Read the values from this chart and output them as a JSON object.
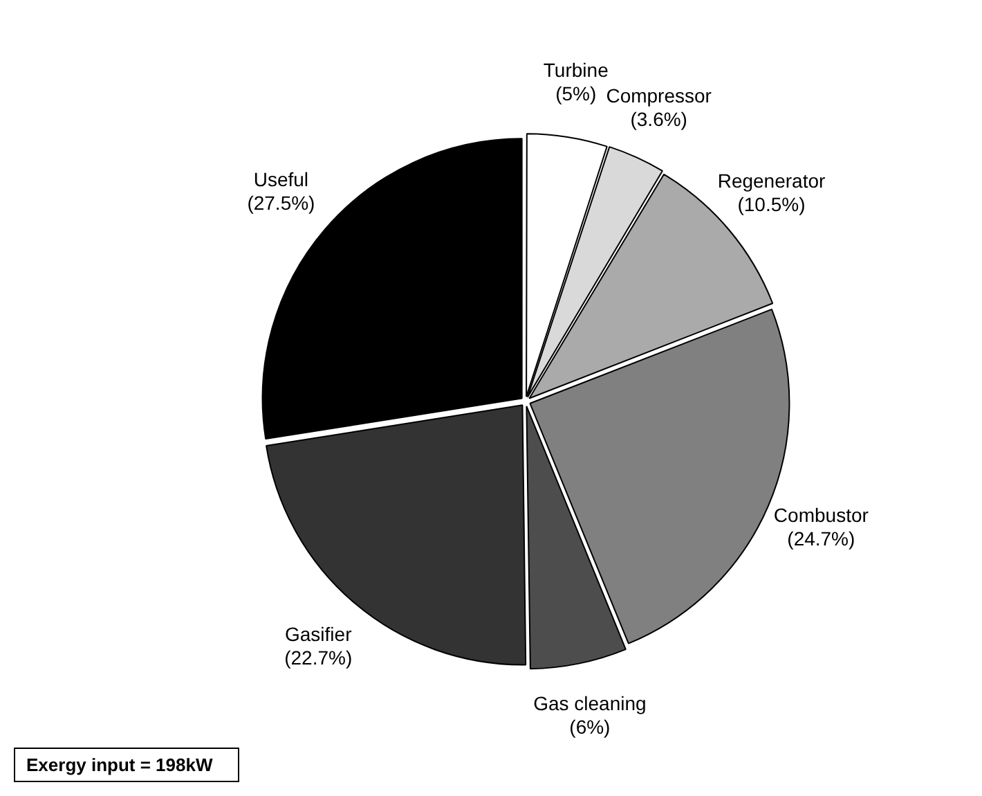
{
  "chart_data": {
    "type": "pie",
    "categories": [
      "Turbine",
      "Compressor",
      "Regenerator",
      "Combustor",
      "Gas cleaning",
      "Gasifier",
      "Useful"
    ],
    "values": [
      5,
      3.6,
      10.5,
      24.7,
      6,
      22.7,
      27.5
    ],
    "colors": [
      "#ffffff",
      "#d9d9d9",
      "#aaaaaa",
      "#808080",
      "#4d4d4d",
      "#333333",
      "#000000"
    ],
    "value_labels": [
      "(5%)",
      "(3.6%)",
      "(10.5%)",
      "(24.7%)",
      "(6%)",
      "(22.7%)",
      "(27.5%)"
    ],
    "annotations": [
      "Exergy input = 198kW"
    ]
  }
}
